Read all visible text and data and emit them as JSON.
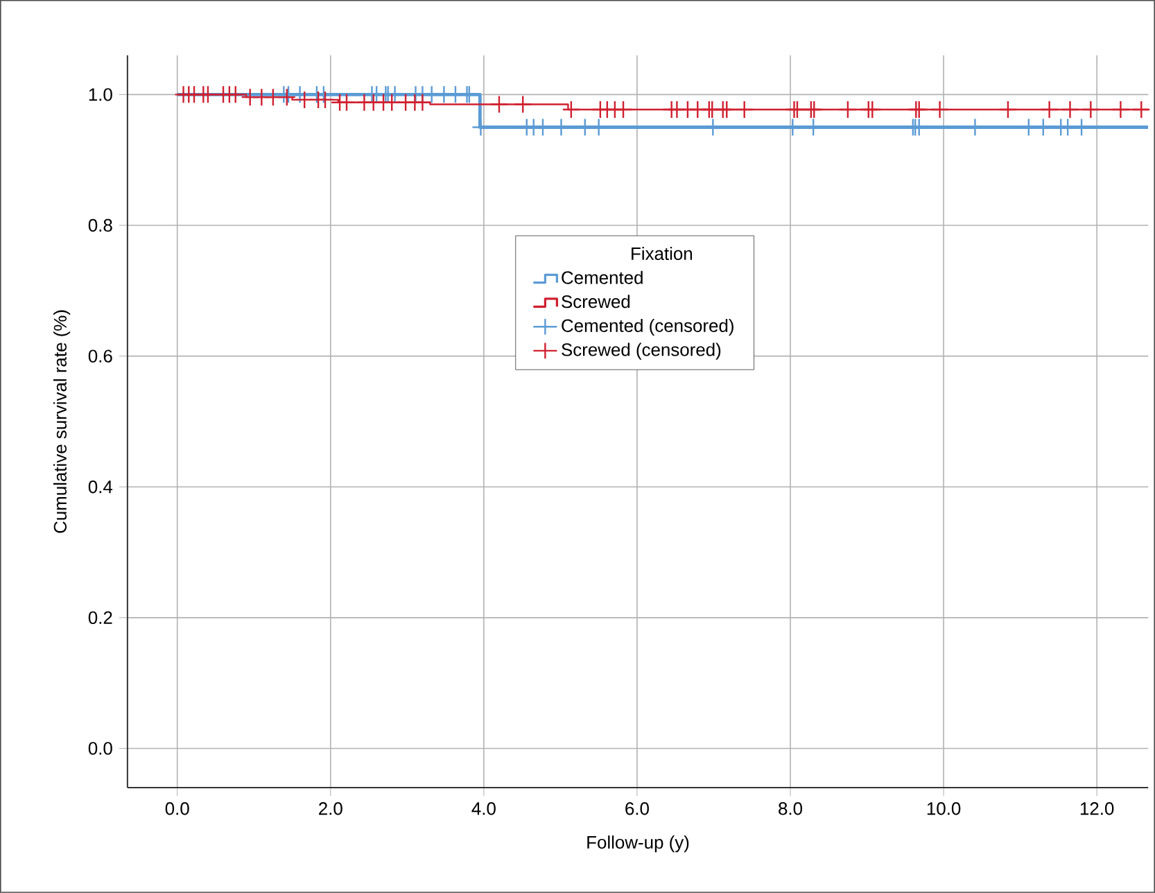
{
  "chart_data": {
    "type": "step",
    "xlabel": "Follow-up (y)",
    "ylabel": "Cumulative survival rate (%)",
    "legend_title": "Fixation",
    "xlim": [
      -0.65,
      12.67
    ],
    "ylim": [
      -0.06,
      1.06
    ],
    "xticks": [
      {
        "value": 0,
        "label": "0.0"
      },
      {
        "value": 2,
        "label": "2.0"
      },
      {
        "value": 4,
        "label": "4.0"
      },
      {
        "value": 6,
        "label": "6.0"
      },
      {
        "value": 8,
        "label": "8.0"
      },
      {
        "value": 10,
        "label": "10.0"
      },
      {
        "value": 12,
        "label": "12.0"
      }
    ],
    "yticks": [
      {
        "value": 0,
        "label": "0.0"
      },
      {
        "value": 0.2,
        "label": "0.2"
      },
      {
        "value": 0.4,
        "label": "0.4"
      },
      {
        "value": 0.6,
        "label": "0.6"
      },
      {
        "value": 0.8,
        "label": "0.8"
      },
      {
        "value": 1,
        "label": "1.0"
      }
    ],
    "grid": true,
    "legend": "center",
    "series": [
      {
        "name": "Cemented",
        "color": "#5b9bd5",
        "x": [
          0,
          3.95,
          12.67
        ],
        "values": [
          1.0,
          0.95,
          0.95
        ]
      },
      {
        "name": "Screwed",
        "color": "#d0202f",
        "x": [
          0,
          0.9,
          1.5,
          2.1,
          3.3,
          5.1,
          12.67
        ],
        "values": [
          1.0,
          0.996,
          0.992,
          0.988,
          0.985,
          0.977,
          0.977
        ]
      },
      {
        "name": "Cemented (censored)",
        "color": "#5b9bd5",
        "type": "scatter",
        "marker": "cross",
        "x": [
          1.39,
          1.45,
          1.6,
          1.82,
          1.91,
          2.54,
          2.6,
          2.72,
          2.75,
          2.84,
          3.11,
          3.2,
          3.32,
          3.48,
          3.63,
          3.78,
          3.81,
          3.96,
          4.56,
          4.65,
          4.77,
          5.01,
          5.32,
          5.5,
          6.99,
          8.03,
          8.3,
          9.6,
          9.63,
          9.68,
          10.41,
          11.11,
          11.3,
          11.53,
          11.62,
          11.8
        ],
        "values": [
          1.0,
          1.0,
          1.0,
          1.0,
          1.0,
          1.0,
          1.0,
          1.0,
          1.0,
          1.0,
          1.0,
          1.0,
          1.0,
          1.0,
          1.0,
          1.0,
          1.0,
          0.95,
          0.95,
          0.95,
          0.95,
          0.95,
          0.95,
          0.95,
          0.95,
          0.95,
          0.95,
          0.95,
          0.95,
          0.95,
          0.95,
          0.95,
          0.95,
          0.95,
          0.95,
          0.95
        ]
      },
      {
        "name": "Screwed (censored)",
        "color": "#d0202f",
        "type": "scatter",
        "marker": "cross",
        "x": [
          0.08,
          0.15,
          0.22,
          0.34,
          0.4,
          0.6,
          0.68,
          0.76,
          0.95,
          1.1,
          1.25,
          1.43,
          1.66,
          1.84,
          1.93,
          2.12,
          2.21,
          2.44,
          2.56,
          2.69,
          2.8,
          2.98,
          3.1,
          3.2,
          4.2,
          4.51,
          5.14,
          5.52,
          5.61,
          5.71,
          5.82,
          6.45,
          6.52,
          6.66,
          6.79,
          6.94,
          6.98,
          7.12,
          7.17,
          7.4,
          8.05,
          8.09,
          8.27,
          8.31,
          8.75,
          9.02,
          9.07,
          9.64,
          9.68,
          9.95,
          10.84,
          11.38,
          11.65,
          11.92,
          12.31,
          12.58
        ],
        "values": [
          1.0,
          1.0,
          1.0,
          1.0,
          1.0,
          1.0,
          1.0,
          1.0,
          0.996,
          0.996,
          0.996,
          0.996,
          0.992,
          0.992,
          0.992,
          0.988,
          0.988,
          0.988,
          0.988,
          0.988,
          0.988,
          0.988,
          0.988,
          0.988,
          0.985,
          0.985,
          0.977,
          0.977,
          0.977,
          0.977,
          0.977,
          0.977,
          0.977,
          0.977,
          0.977,
          0.977,
          0.977,
          0.977,
          0.977,
          0.977,
          0.977,
          0.977,
          0.977,
          0.977,
          0.977,
          0.977,
          0.977,
          0.977,
          0.977,
          0.977,
          0.977,
          0.977,
          0.977,
          0.977,
          0.977,
          0.977
        ]
      }
    ]
  }
}
